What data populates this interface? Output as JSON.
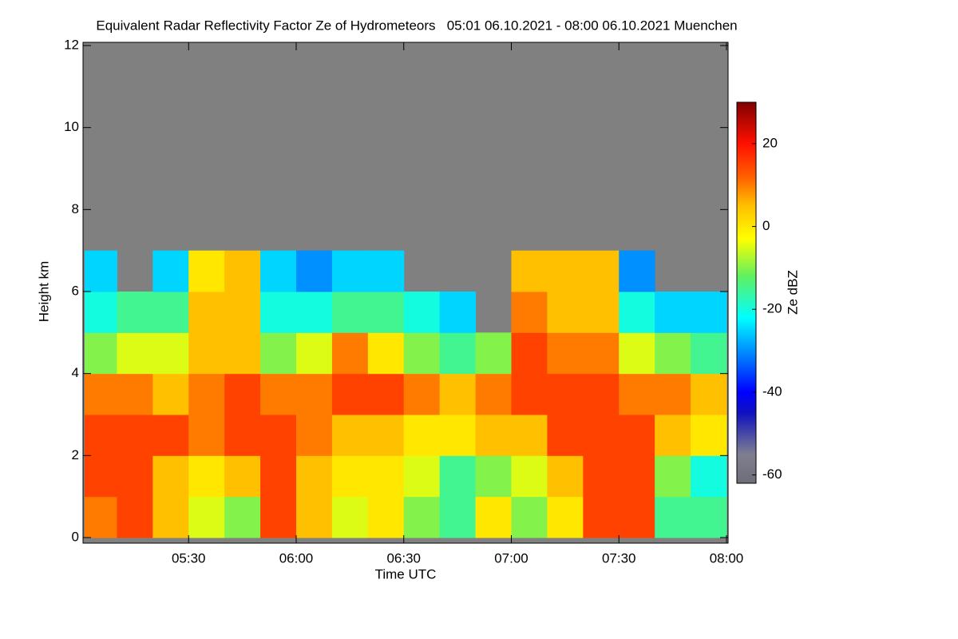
{
  "chart_data": {
    "type": "heatmap",
    "title": "Equivalent Radar Reflectivity Factor Ze of Hydrometeors   05:01 06.10.2021 - 08:00 06.10.2021 Muenchen",
    "xlabel": "Time UTC",
    "ylabel": "Height km",
    "colorbar_label": "Ze dBZ",
    "xlim": [
      "05:01",
      "08:00"
    ],
    "xticks": [
      "05:30",
      "06:00",
      "06:30",
      "07:00",
      "07:30",
      "08:00"
    ],
    "ylim": [
      0,
      12
    ],
    "yticks": [
      0,
      2,
      4,
      6,
      8,
      10,
      12
    ],
    "zlim": [
      -62,
      30
    ],
    "zticks": [
      -60,
      -40,
      -20,
      0,
      20
    ],
    "missing_color": "#808080",
    "colorscale": [
      [
        -62,
        "#6e6e78"
      ],
      [
        -55,
        "#7f7f90"
      ],
      [
        -45,
        "#1010c0"
      ],
      [
        -40,
        "#0000ff"
      ],
      [
        -30,
        "#0090ff"
      ],
      [
        -22,
        "#00ffff"
      ],
      [
        -12,
        "#60f060"
      ],
      [
        -3,
        "#ffff00"
      ],
      [
        5,
        "#ffc000"
      ],
      [
        12,
        "#ff6000"
      ],
      [
        20,
        "#ff1000"
      ],
      [
        30,
        "#800000"
      ]
    ],
    "x_edges": [
      "05:01",
      "05:10",
      "05:20",
      "05:30",
      "05:40",
      "05:50",
      "06:00",
      "06:10",
      "06:20",
      "06:30",
      "06:40",
      "06:50",
      "07:00",
      "07:10",
      "07:20",
      "07:30",
      "07:40",
      "07:50",
      "08:00"
    ],
    "y_edges": [
      0,
      1,
      2,
      3,
      4,
      5,
      6,
      7
    ],
    "z": [
      [
        10,
        15,
        5,
        -5,
        -10,
        15,
        5,
        -5,
        0,
        -10,
        -15,
        0,
        -10,
        0,
        15,
        15,
        -15,
        -15
      ],
      [
        15,
        15,
        5,
        0,
        5,
        15,
        5,
        0,
        0,
        -5,
        -15,
        -10,
        -5,
        5,
        15,
        15,
        -10,
        -20
      ],
      [
        15,
        15,
        15,
        10,
        15,
        15,
        10,
        5,
        5,
        0,
        0,
        5,
        5,
        15,
        15,
        15,
        5,
        0
      ],
      [
        10,
        10,
        5,
        10,
        15,
        10,
        10,
        15,
        15,
        10,
        5,
        10,
        15,
        15,
        15,
        10,
        10,
        5
      ],
      [
        -10,
        -5,
        -5,
        5,
        5,
        -10,
        -5,
        10,
        0,
        -10,
        -15,
        -10,
        15,
        10,
        10,
        -5,
        -10,
        -15
      ],
      [
        -20,
        -15,
        -15,
        5,
        5,
        -20,
        -20,
        -15,
        -15,
        -20,
        -25,
        null,
        10,
        5,
        5,
        -20,
        -25,
        -25
      ],
      [
        -25,
        null,
        -25,
        0,
        5,
        -25,
        -30,
        -25,
        -25,
        null,
        null,
        null,
        5,
        5,
        5,
        -30,
        null,
        null
      ]
    ]
  }
}
